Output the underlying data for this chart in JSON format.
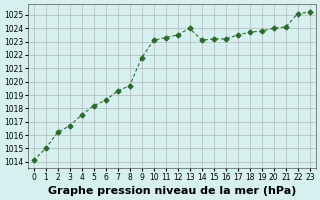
{
  "x": [
    0,
    1,
    2,
    3,
    4,
    5,
    6,
    7,
    8,
    9,
    10,
    11,
    12,
    13,
    14,
    15,
    16,
    17,
    18,
    19,
    20,
    21,
    22,
    23
  ],
  "y": [
    1014.1,
    1015.0,
    1016.2,
    1016.7,
    1017.5,
    1018.2,
    1018.6,
    1019.3,
    1019.7,
    1021.8,
    1023.1,
    1023.3,
    1023.5,
    1024.0,
    1023.1,
    1023.2,
    1023.2,
    1023.5,
    1023.7,
    1023.8,
    1024.0,
    1024.1,
    1025.1,
    1025.2
  ],
  "line_color": "#2d6a2d",
  "marker": "D",
  "marker_size": 2.5,
  "bg_color": "#d6f0f0",
  "grid_color": "#aaaaaa",
  "title": "Graphe pression niveau de la mer (hPa)",
  "title_fontsize": 8,
  "title_bold": true,
  "xlim": [
    -0.5,
    23.5
  ],
  "ylim": [
    1013.5,
    1025.8
  ],
  "yticks": [
    1014,
    1015,
    1016,
    1017,
    1018,
    1019,
    1020,
    1021,
    1022,
    1023,
    1024,
    1025
  ],
  "xticks": [
    0,
    1,
    2,
    3,
    4,
    5,
    6,
    7,
    8,
    9,
    10,
    11,
    12,
    13,
    14,
    15,
    16,
    17,
    18,
    19,
    20,
    21,
    22,
    23
  ],
  "tick_fontsize": 5.5
}
